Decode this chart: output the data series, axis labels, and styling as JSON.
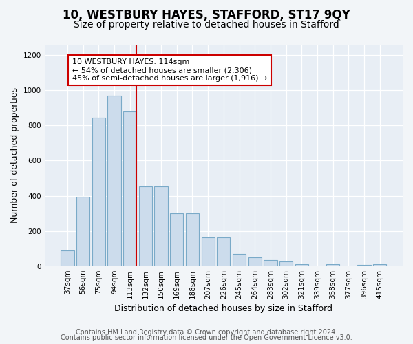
{
  "title": "10, WESTBURY HAYES, STAFFORD, ST17 9QY",
  "subtitle": "Size of property relative to detached houses in Stafford",
  "xlabel": "Distribution of detached houses by size in Stafford",
  "ylabel": "Number of detached properties",
  "categories": [
    "37sqm",
    "56sqm",
    "75sqm",
    "94sqm",
    "113sqm",
    "132sqm",
    "150sqm",
    "169sqm",
    "188sqm",
    "207sqm",
    "226sqm",
    "245sqm",
    "264sqm",
    "283sqm",
    "302sqm",
    "321sqm",
    "339sqm",
    "358sqm",
    "377sqm",
    "396sqm",
    "415sqm"
  ],
  "values": [
    90,
    395,
    845,
    970,
    880,
    455,
    455,
    300,
    300,
    165,
    165,
    70,
    50,
    35,
    25,
    10,
    0,
    10,
    0,
    5,
    10
  ],
  "bar_color": "#ccdcec",
  "bar_edge_color": "#7aaac8",
  "vline_color": "#cc0000",
  "vline_x": 4,
  "annotation_text": "10 WESTBURY HAYES: 114sqm\n← 54% of detached houses are smaller (2,306)\n45% of semi-detached houses are larger (1,916) →",
  "annotation_box_color": "#ffffff",
  "annotation_box_edge_color": "#cc0000",
  "ylim": [
    0,
    1260
  ],
  "yticks": [
    0,
    200,
    400,
    600,
    800,
    1000,
    1200
  ],
  "footer_line1": "Contains HM Land Registry data © Crown copyright and database right 2024.",
  "footer_line2": "Contains public sector information licensed under the Open Government Licence v3.0.",
  "bg_color": "#f2f5f8",
  "plot_bg_color": "#e8eef5",
  "title_fontsize": 12,
  "subtitle_fontsize": 10,
  "label_fontsize": 9,
  "tick_fontsize": 7.5,
  "footer_fontsize": 7,
  "annotation_fontsize": 8
}
